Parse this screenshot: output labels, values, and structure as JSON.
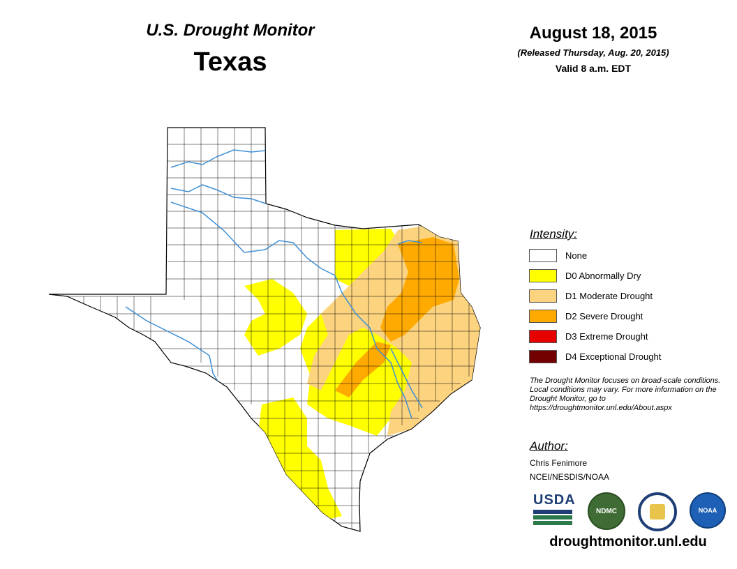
{
  "header": {
    "monitor_title": "U.S. Drought Monitor",
    "state": "Texas",
    "date": "August 18, 2015",
    "released": "(Released Thursday, Aug. 20, 2015)",
    "valid": "Valid 8 a.m. EDT"
  },
  "legend": {
    "title": "Intensity:",
    "items": [
      {
        "label": "None",
        "color": "#ffffff"
      },
      {
        "label": "D0 Abnormally Dry",
        "color": "#ffff00"
      },
      {
        "label": "D1 Moderate Drought",
        "color": "#fcd37f"
      },
      {
        "label": "D2 Severe Drought",
        "color": "#ffaa00"
      },
      {
        "label": "D3 Extreme Drought",
        "color": "#e60000"
      },
      {
        "label": "D4 Exceptional Drought",
        "color": "#730000"
      }
    ]
  },
  "note": "The Drought Monitor focuses on broad-scale conditions. Local conditions may vary. For more information on the Drought Monitor, go to https://droughtmonitor.unl.edu/About.aspx",
  "author": {
    "title": "Author:",
    "name": "Chris Fenimore",
    "org": "NCEI/NESDIS/NOAA"
  },
  "logos": {
    "usda": "USDA",
    "ndmc": "NDMC",
    "noaa": "NOAA"
  },
  "site": "droughtmonitor.unl.edu",
  "colors": {
    "river": "#3d8fd6",
    "d0": "#ffff00",
    "d1": "#fcd37f",
    "d2": "#ffaa00"
  }
}
